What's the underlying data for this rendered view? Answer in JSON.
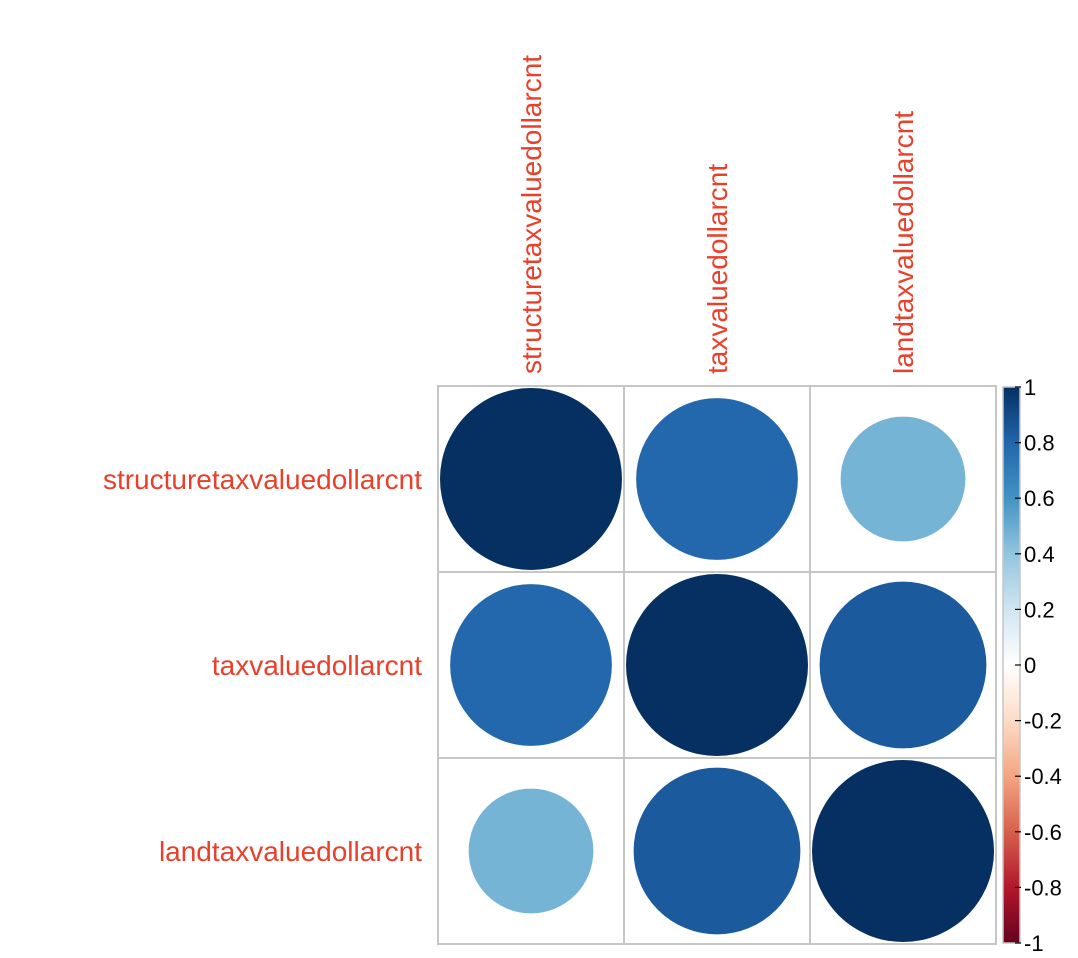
{
  "chart_data": {
    "type": "heatmap",
    "variables": [
      "structuretaxvaluedollarcnt",
      "taxvaluedollarcnt",
      "landtaxvaluedollarcnt"
    ],
    "matrix": [
      [
        1.0,
        0.79,
        0.47
      ],
      [
        0.79,
        1.0,
        0.84
      ],
      [
        0.47,
        0.84,
        1.0
      ]
    ],
    "glyph": "circle",
    "label_color": "#e8402a",
    "colorbar": {
      "range": [
        -1,
        1
      ],
      "ticks": [
        "1",
        "0.8",
        "0.6",
        "0.4",
        "0.2",
        "0",
        "-0.2",
        "-0.4",
        "-0.6",
        "-0.8",
        "-1"
      ]
    },
    "palette": [
      "#67001f",
      "#b2182b",
      "#d6604d",
      "#f4a582",
      "#fddbc7",
      "#ffffff",
      "#d1e5f0",
      "#92c5de",
      "#4393c3",
      "#2166ac",
      "#053061"
    ]
  }
}
